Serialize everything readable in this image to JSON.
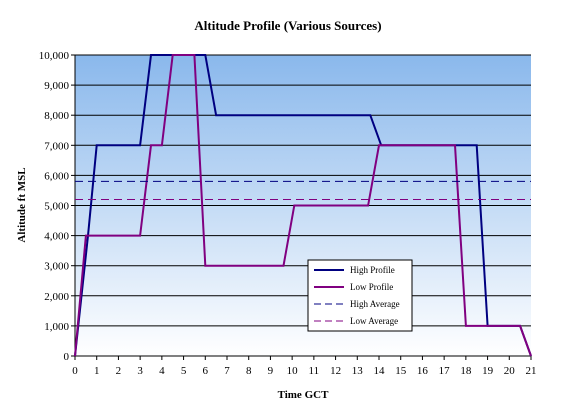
{
  "chart_data": {
    "type": "line",
    "title": "Altitude Profile (Various Sources)",
    "xlabel": "Time GCT",
    "ylabel": "Altitude ft MSL",
    "xlim": [
      0,
      21
    ],
    "ylim": [
      0,
      10000
    ],
    "x_ticks": [
      0,
      1,
      2,
      3,
      4,
      5,
      6,
      7,
      8,
      9,
      10,
      11,
      12,
      13,
      14,
      15,
      16,
      17,
      18,
      19,
      20,
      21
    ],
    "x_tick_labels": [
      "0",
      "1",
      "2",
      "3",
      "4",
      "5",
      "6",
      "7",
      "8",
      "9",
      "10",
      "11",
      "12",
      "13",
      "14",
      "15",
      "16",
      "17",
      "18",
      "19",
      "20",
      "21"
    ],
    "y_ticks": [
      0,
      1000,
      2000,
      3000,
      4000,
      5000,
      6000,
      7000,
      8000,
      9000,
      10000
    ],
    "y_tick_labels": [
      "0",
      "1,000",
      "2,000",
      "3,000",
      "4,000",
      "5,000",
      "6,000",
      "7,000",
      "8,000",
      "9,000",
      "10,000"
    ],
    "grid": "horizontal",
    "legend_position": "lower-right",
    "background_gradient": {
      "top": "#8ab8ec",
      "bottom": "#ffffff"
    },
    "series": [
      {
        "name": "High Profile",
        "color": "#000080",
        "dash": "solid",
        "points": [
          [
            0,
            0
          ],
          [
            0.6,
            4000
          ],
          [
            1,
            7000
          ],
          [
            3,
            7000
          ],
          [
            3.5,
            10000
          ],
          [
            6,
            10000
          ],
          [
            6.5,
            8000
          ],
          [
            13.6,
            8000
          ],
          [
            14.1,
            7000
          ],
          [
            18.5,
            7000
          ],
          [
            19,
            1000
          ],
          [
            20.5,
            1000
          ],
          [
            21,
            0
          ]
        ]
      },
      {
        "name": "Low Profile",
        "color": "#800080",
        "dash": "solid",
        "points": [
          [
            0,
            0
          ],
          [
            0.5,
            4000
          ],
          [
            3,
            4000
          ],
          [
            3.5,
            7000
          ],
          [
            4,
            7000
          ],
          [
            4.5,
            10000
          ],
          [
            5.5,
            10000
          ],
          [
            6,
            3000
          ],
          [
            9.6,
            3000
          ],
          [
            10.1,
            5000
          ],
          [
            13.5,
            5000
          ],
          [
            14,
            7000
          ],
          [
            17.5,
            7000
          ],
          [
            18,
            1000
          ],
          [
            20.5,
            1000
          ],
          [
            21,
            0
          ]
        ]
      },
      {
        "name": "High Average",
        "color": "#000080",
        "dash": "dashed",
        "points": [
          [
            0,
            5800
          ],
          [
            21,
            5800
          ]
        ]
      },
      {
        "name": "Low Average",
        "color": "#800080",
        "dash": "dashed",
        "points": [
          [
            0,
            5200
          ],
          [
            21,
            5200
          ]
        ]
      }
    ]
  }
}
